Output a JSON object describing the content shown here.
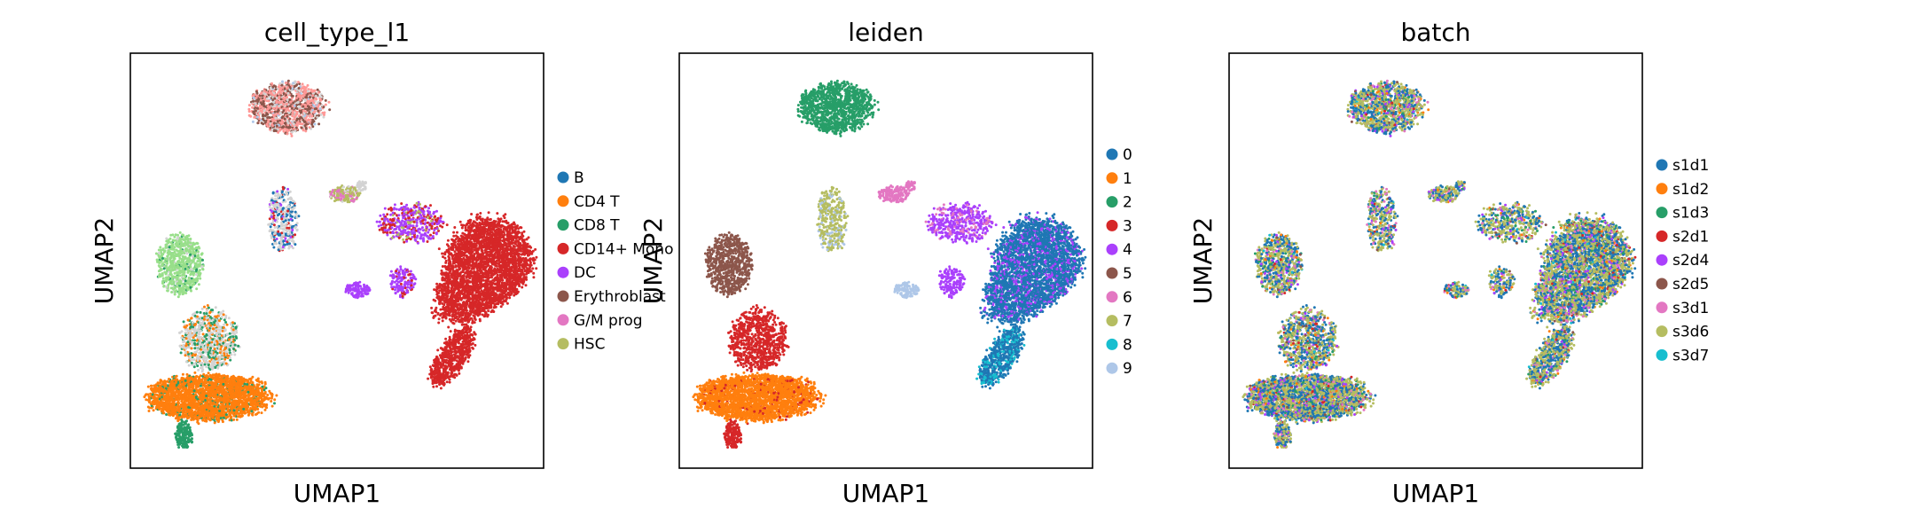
{
  "chart_data": [
    {
      "type": "scatter",
      "title": "cell_type_l1",
      "xlabel": "UMAP1",
      "ylabel": "UMAP2",
      "ticks": "none",
      "grid": false,
      "legend": {
        "placement": "right-outside",
        "entries": [
          {
            "label": "B",
            "color": "#1f77b4"
          },
          {
            "label": "CD4 T",
            "color": "#ff7f0e"
          },
          {
            "label": "CD8 T",
            "color": "#279e68"
          },
          {
            "label": "CD14+ Mono",
            "color": "#d62728"
          },
          {
            "label": "DC",
            "color": "#aa40fc"
          },
          {
            "label": "Erythroblast",
            "color": "#8c564b"
          },
          {
            "label": "G/M prog",
            "color": "#e377c2"
          },
          {
            "label": "HSC",
            "color": "#b5bd61"
          }
        ]
      },
      "unlabeled_colors": [
        "#98df8a",
        "#ff9896",
        "#d3d3d3"
      ]
    },
    {
      "type": "scatter",
      "title": "leiden",
      "xlabel": "UMAP1",
      "ylabel": "UMAP2",
      "ticks": "none",
      "grid": false,
      "legend": {
        "placement": "right-outside",
        "entries": [
          {
            "label": "0",
            "color": "#1f77b4"
          },
          {
            "label": "1",
            "color": "#ff7f0e"
          },
          {
            "label": "2",
            "color": "#279e68"
          },
          {
            "label": "3",
            "color": "#d62728"
          },
          {
            "label": "4",
            "color": "#aa40fc"
          },
          {
            "label": "5",
            "color": "#8c564b"
          },
          {
            "label": "6",
            "color": "#e377c2"
          },
          {
            "label": "7",
            "color": "#b5bd61"
          },
          {
            "label": "8",
            "color": "#17becf"
          },
          {
            "label": "9",
            "color": "#aec7e8"
          }
        ]
      }
    },
    {
      "type": "scatter",
      "title": "batch",
      "xlabel": "UMAP1",
      "ylabel": "UMAP2",
      "ticks": "none",
      "grid": false,
      "legend": {
        "placement": "right-outside",
        "entries": [
          {
            "label": "s1d1",
            "color": "#1f77b4"
          },
          {
            "label": "s1d2",
            "color": "#ff7f0e"
          },
          {
            "label": "s1d3",
            "color": "#279e68"
          },
          {
            "label": "s2d1",
            "color": "#d62728"
          },
          {
            "label": "s2d4",
            "color": "#aa40fc"
          },
          {
            "label": "s2d5",
            "color": "#8c564b"
          },
          {
            "label": "s3d1",
            "color": "#e377c2"
          },
          {
            "label": "s3d6",
            "color": "#b5bd61"
          },
          {
            "label": "s3d7",
            "color": "#17becf"
          }
        ]
      }
    }
  ]
}
